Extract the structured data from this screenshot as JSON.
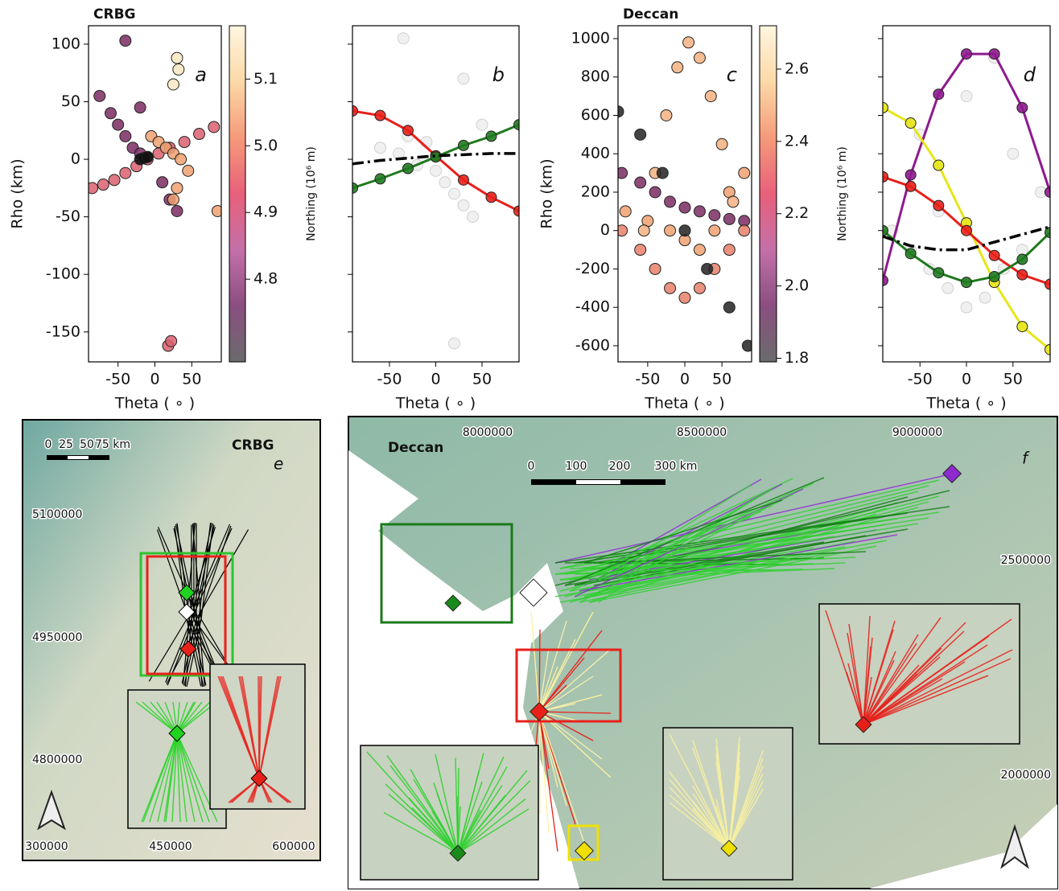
{
  "chart_data": [
    {
      "type": "scatter",
      "title": "CRBG",
      "annotation": "a",
      "xlabel": "Theta ( ∘ )",
      "ylabel": "Rho (km)",
      "xlim": [
        -90,
        90
      ],
      "ylim": [
        -176,
        116
      ],
      "xticks": [
        -50,
        0,
        50
      ],
      "yticks": [
        -150,
        -100,
        -50,
        0,
        50,
        100
      ],
      "show_ytick_labels": true,
      "colorbar": {
        "label": "Northing (10⁶ m)",
        "lim": [
          4.676,
          5.18
        ],
        "ticks": [
          {
            "value": 4.8,
            "label": "4.8"
          },
          {
            "value": 4.9,
            "label": "4.9"
          },
          {
            "value": 5,
            "label": "5.0"
          },
          {
            "value": 5.1,
            "label": "5.1"
          }
        ],
        "colors": [
          "#6b6b6b",
          "#8a4f80",
          "#c470a8",
          "#e8607a",
          "#f59a7a",
          "#fcd9a8",
          "#fff6e0"
        ]
      },
      "series": [
        {
          "style": "points",
          "color": "#7a2c62",
          "opacity": 0.85,
          "x": [
            -75,
            -60,
            -50,
            -40,
            -30,
            -20,
            -10,
            10,
            20,
            30,
            -40,
            -20
          ],
          "values": [
            55,
            40,
            30,
            20,
            10,
            5,
            2,
            -20,
            -35,
            -45,
            103,
            45
          ]
        },
        {
          "style": "points",
          "color": "#d9606e",
          "opacity": 0.85,
          "x": [
            -85,
            -70,
            -55,
            -40,
            -25,
            -10,
            5,
            20,
            40,
            60,
            80,
            18,
            22
          ],
          "values": [
            -25,
            -22,
            -18,
            -12,
            -6,
            0,
            5,
            10,
            15,
            22,
            28,
            -162,
            -158
          ]
        },
        {
          "style": "points",
          "color": "#f0a070",
          "opacity": 0.85,
          "x": [
            -5,
            5,
            15,
            25,
            35,
            45,
            30,
            25,
            85
          ],
          "values": [
            20,
            15,
            10,
            5,
            0,
            -10,
            -25,
            -35,
            -45
          ]
        },
        {
          "style": "points",
          "color": "#f8e8c0",
          "opacity": 0.85,
          "x": [
            30,
            32,
            25
          ],
          "values": [
            88,
            78,
            65
          ]
        },
        {
          "style": "points",
          "color": "#111111",
          "opacity": 0.9,
          "x": [
            -20,
            -15,
            -10
          ],
          "values": [
            0,
            1,
            2
          ]
        }
      ]
    },
    {
      "type": "scatter",
      "annotation": "b",
      "xlabel": "Theta ( ∘ )",
      "xlim": [
        -90,
        90
      ],
      "ylim": [
        -176,
        116
      ],
      "xticks": [
        -50,
        0,
        50
      ],
      "yticks": [
        -150,
        -100,
        -50,
        0,
        50,
        100
      ],
      "show_ytick_labels": false,
      "series": [
        {
          "style": "points",
          "color": "#999999",
          "opacity": 0.15,
          "x": [
            -60,
            -40,
            -20,
            0,
            10,
            20,
            30,
            40,
            -30,
            -10,
            30,
            20,
            -35,
            50
          ],
          "values": [
            10,
            5,
            -5,
            -10,
            -20,
            -30,
            -40,
            -50,
            20,
            15,
            70,
            -160,
            105,
            30
          ]
        },
        {
          "style": "curve",
          "color": "#e8201a",
          "opacity": 0.9,
          "x": [
            -90,
            -60,
            -30,
            0,
            30,
            60,
            90
          ],
          "values": [
            42,
            38,
            25,
            3,
            -18,
            -33,
            -45
          ]
        },
        {
          "style": "curve",
          "color": "#1f7a1f",
          "opacity": 0.9,
          "x": [
            -90,
            -60,
            -30,
            0,
            30,
            60,
            90
          ],
          "values": [
            -25,
            -17,
            -8,
            2,
            12,
            20,
            30
          ]
        },
        {
          "style": "dashdot",
          "color": "#000000",
          "opacity": 1,
          "x": [
            -90,
            -60,
            -30,
            0,
            30,
            60,
            90
          ],
          "values": [
            -4,
            -1,
            1,
            3,
            4,
            5,
            5
          ]
        }
      ]
    },
    {
      "type": "scatter",
      "title": "Deccan",
      "annotation": "c",
      "xlabel": "Theta ( ∘ )",
      "ylabel": "Rho (km)",
      "xlim": [
        -90,
        90
      ],
      "ylim": [
        -684,
        1067
      ],
      "xticks": [
        -50,
        0,
        50
      ],
      "yticks": [
        -600,
        -400,
        -200,
        0,
        200,
        400,
        600,
        800,
        1000
      ],
      "show_ytick_labels": true,
      "colorbar": {
        "label": "Northing (10⁶ m)",
        "lim": [
          1.79,
          2.72
        ],
        "ticks": [
          1.8,
          {
            "value": 2,
            "label": "2.0"
          },
          2.2,
          2.4,
          2.6
        ],
        "colors": [
          "#6b6b6b",
          "#8a4f80",
          "#c470a8",
          "#e8607a",
          "#f59a7a",
          "#fcd9a8",
          "#fff6e0"
        ]
      },
      "series": [
        {
          "style": "points",
          "color": "#7a2c62",
          "opacity": 0.85,
          "x": [
            -85,
            -60,
            -40,
            -20,
            0,
            20,
            40,
            60,
            80
          ],
          "values": [
            300,
            250,
            200,
            150,
            120,
            100,
            80,
            60,
            50
          ]
        },
        {
          "style": "points",
          "color": "#e8806a",
          "opacity": 0.85,
          "x": [
            -85,
            -60,
            -40,
            -20,
            0,
            20,
            40,
            60,
            80
          ],
          "values": [
            0,
            -100,
            -200,
            -300,
            -350,
            -300,
            -200,
            -100,
            0
          ]
        },
        {
          "style": "points",
          "color": "#f0a070",
          "opacity": 0.85,
          "x": [
            -80,
            -50,
            -20,
            0,
            20,
            40,
            60,
            80
          ],
          "values": [
            100,
            50,
            0,
            -50,
            -100,
            0,
            200,
            300
          ]
        },
        {
          "style": "points",
          "color": "#f5b080",
          "opacity": 0.85,
          "x": [
            -55,
            -40,
            -25,
            -10,
            5,
            20,
            35,
            50,
            65
          ],
          "values": [
            0,
            300,
            600,
            850,
            980,
            900,
            700,
            450,
            150
          ]
        },
        {
          "style": "points",
          "color": "#222222",
          "opacity": 0.85,
          "x": [
            -90,
            -60,
            -30,
            0,
            30,
            60,
            85
          ],
          "values": [
            620,
            500,
            300,
            0,
            -200,
            -400,
            -600
          ]
        }
      ]
    },
    {
      "type": "scatter",
      "annotation": "d",
      "xlabel": "Theta ( ∘ )",
      "xlim": [
        -90,
        90
      ],
      "ylim": [
        -684,
        1067
      ],
      "xticks": [
        -50,
        0,
        50
      ],
      "yticks": [
        -600,
        -400,
        -200,
        0,
        200,
        400,
        600,
        800,
        1000
      ],
      "show_ytick_labels": false,
      "series": [
        {
          "style": "points",
          "color": "#999999",
          "opacity": 0.15,
          "x": [
            -80,
            -60,
            -40,
            -20,
            0,
            20,
            40,
            60,
            80,
            -50,
            0,
            50,
            30,
            -30
          ],
          "values": [
            0,
            -100,
            -200,
            -300,
            -400,
            -350,
            -200,
            -100,
            200,
            500,
            700,
            400,
            900,
            100
          ]
        },
        {
          "style": "curve",
          "color": "#8e1a8e",
          "opacity": 0.9,
          "x": [
            -90,
            -60,
            -30,
            0,
            30,
            60,
            90
          ],
          "values": [
            -260,
            290,
            710,
            920,
            920,
            640,
            200
          ]
        },
        {
          "style": "curve",
          "color": "#e6e61a",
          "opacity": 0.9,
          "x": [
            -90,
            -60,
            -30,
            0,
            30,
            60,
            90
          ],
          "values": [
            640,
            560,
            340,
            40,
            -270,
            -500,
            -620
          ]
        },
        {
          "style": "curve",
          "color": "#e8201a",
          "opacity": 0.9,
          "x": [
            -90,
            -60,
            -30,
            0,
            30,
            60,
            90
          ],
          "values": [
            280,
            230,
            130,
            0,
            -130,
            -230,
            -280
          ]
        },
        {
          "style": "curve",
          "color": "#1f7a1f",
          "opacity": 0.9,
          "x": [
            -90,
            -60,
            -30,
            0,
            30,
            60,
            90
          ],
          "values": [
            0,
            -120,
            -220,
            -270,
            -240,
            -150,
            -10
          ]
        },
        {
          "style": "dashdot",
          "color": "#000000",
          "opacity": 1,
          "x": [
            -90,
            -60,
            -30,
            0,
            30,
            60,
            90
          ],
          "values": [
            -30,
            -80,
            -100,
            -100,
            -60,
            -20,
            20
          ]
        }
      ]
    }
  ],
  "maps": [
    {
      "title": "CRBG",
      "panel": "e",
      "scale_labels": [
        "0",
        "25",
        "50",
        "75 km"
      ],
      "x_labels": [
        "300000",
        "450000",
        "600000"
      ],
      "y_labels": [
        "5100000",
        "4950000",
        "4800000"
      ]
    },
    {
      "title": "Deccan",
      "panel": "f",
      "scale_labels": [
        "0",
        "100",
        "200",
        "300 km"
      ],
      "x_labels": [
        "8000000",
        "8500000",
        "9000000"
      ],
      "y_labels": [
        "2500000",
        "2000000"
      ]
    }
  ]
}
